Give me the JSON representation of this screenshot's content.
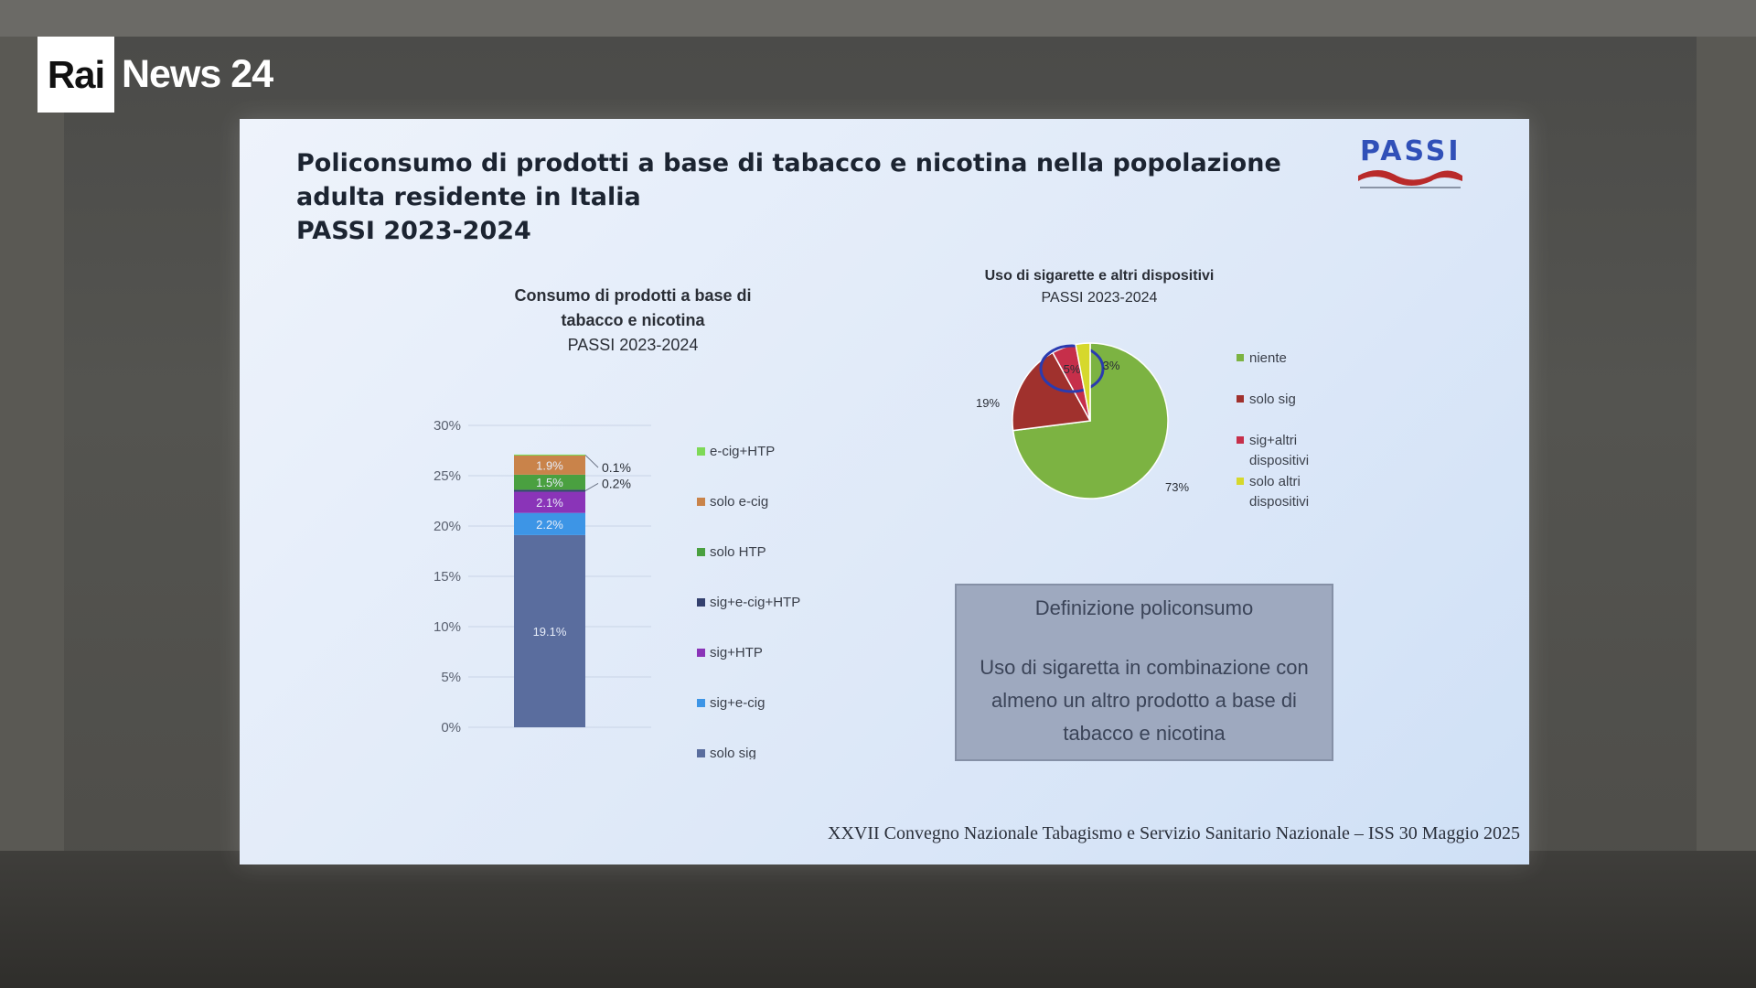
{
  "broadcaster": {
    "logo_box": "Rai",
    "logo_text": "News 24"
  },
  "slide": {
    "title_lines": [
      "Policonsumo di prodotti a base di tabacco e nicotina nella popolazione",
      "adulta residente in Italia",
      "PASSI 2023-2024"
    ],
    "logo_text": "PASSI",
    "footer": "XXVII Convegno Nazionale Tabagismo e Servizio Sanitario Nazionale – ISS 30 Maggio 2025",
    "definition": {
      "title": "Definizione policonsumo",
      "body": "Uso di sigaretta in combinazione con almeno un altro prodotto a base di tabacco e nicotina"
    }
  },
  "chart_data": [
    {
      "type": "bar",
      "stacked": true,
      "title_lines": [
        "Consumo di prodotti a base di",
        "tabacco e nicotina"
      ],
      "subtitle": "PASSI 2023-2024",
      "ylim": [
        0,
        30
      ],
      "yticks": [
        "0%",
        "5%",
        "10%",
        "15%",
        "20%",
        "25%",
        "30%"
      ],
      "ytick_values": [
        0,
        5,
        10,
        15,
        20,
        25,
        30
      ],
      "legend_position": "right",
      "series": [
        {
          "name": "solo sig",
          "value": 19.1,
          "label": "19.1%",
          "color": "#5a6d9e",
          "label_side": "inside"
        },
        {
          "name": "sig+e-cig",
          "value": 2.2,
          "label": "2.2%",
          "color": "#3d95e6",
          "label_side": "inside"
        },
        {
          "name": "sig+HTP",
          "value": 2.1,
          "label": "2.1%",
          "color": "#8a34b8",
          "label_side": "inside"
        },
        {
          "name": "sig+e-cig+HTP",
          "value": 0.2,
          "label": "0.2%",
          "color": "#33406e",
          "label_side": "outside"
        },
        {
          "name": "solo HTP",
          "value": 1.5,
          "label": "1.5%",
          "color": "#4aa040",
          "label_side": "inside"
        },
        {
          "name": "solo e-cig",
          "value": 1.9,
          "label": "1.9%",
          "color": "#c9834a",
          "label_side": "inside"
        },
        {
          "name": "e-cig+HTP",
          "value": 0.1,
          "label": "0.1%",
          "color": "#7ed957",
          "label_side": "outside"
        }
      ],
      "legend_order": [
        "e-cig+HTP",
        "solo e-cig",
        "solo HTP",
        "sig+e-cig+HTP",
        "sig+HTP",
        "sig+e-cig",
        "solo sig"
      ]
    },
    {
      "type": "pie",
      "title": "Uso di sigarette e altri dispositivi",
      "subtitle": "PASSI 2023-2024",
      "legend_position": "right",
      "slices": [
        {
          "name": "niente",
          "value": 73,
          "label": "73%",
          "color": "#7cb342"
        },
        {
          "name": "solo sig",
          "value": 19,
          "label": "19%",
          "color": "#a0312d"
        },
        {
          "name": "sig+altri dispositivi",
          "value": 5,
          "label": "5%",
          "color": "#c62f4a",
          "highlight": true
        },
        {
          "name": "solo altri dispositivi",
          "value": 3,
          "label": "3%",
          "color": "#d6d82c"
        }
      ],
      "legend_lines": [
        [
          "niente"
        ],
        [
          "solo sig"
        ],
        [
          "sig+altri",
          "dispositivi"
        ],
        [
          "solo altri",
          "dispositivi"
        ]
      ]
    }
  ]
}
